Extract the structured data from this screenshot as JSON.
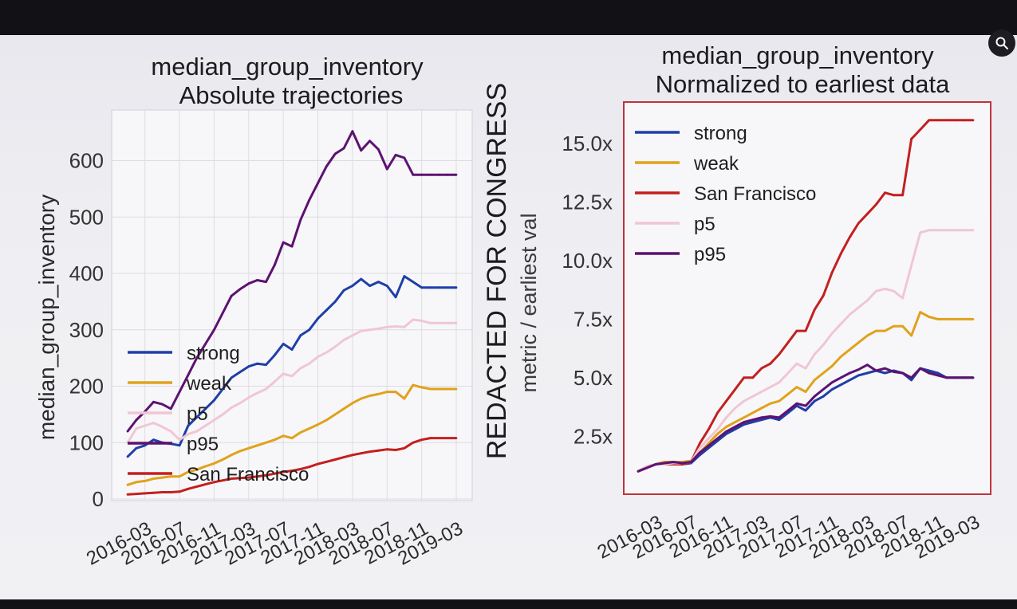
{
  "overlay": {
    "redaction": "REDACTED FOR CONGRESS"
  },
  "colors": {
    "strong": "#1f3fa8",
    "weak": "#e0a21c",
    "san_francisco": "#c41f1f",
    "p5": "#f0c6d4",
    "p95": "#5d1270"
  },
  "chart_data": [
    {
      "type": "line",
      "title": "median_group_inventory\nAbsolute trajectories",
      "title_lines": [
        "median_group_inventory",
        "Absolute trajectories"
      ],
      "xlabel": "",
      "ylabel": "median_group_inventory",
      "x": [
        "2016-01",
        "2016-02",
        "2016-03",
        "2016-04",
        "2016-05",
        "2016-06",
        "2016-07",
        "2016-08",
        "2016-09",
        "2016-10",
        "2016-11",
        "2016-12",
        "2017-01",
        "2017-02",
        "2017-03",
        "2017-04",
        "2017-05",
        "2017-06",
        "2017-07",
        "2017-08",
        "2017-09",
        "2017-10",
        "2017-11",
        "2017-12",
        "2018-01",
        "2018-02",
        "2018-03",
        "2018-04",
        "2018-05",
        "2018-06",
        "2018-07",
        "2018-08",
        "2018-09",
        "2018-10",
        "2018-11",
        "2018-12",
        "2019-01",
        "2019-02",
        "2019-03"
      ],
      "xticks": [
        "2016-03",
        "2016-07",
        "2016-11",
        "2017-03",
        "2017-07",
        "2017-11",
        "2018-03",
        "2018-07",
        "2018-11",
        "2019-03"
      ],
      "yticks": [
        0,
        100,
        200,
        300,
        400,
        500,
        600
      ],
      "ylim": [
        0,
        670
      ],
      "grid": true,
      "legend_position": "center-left",
      "legend": [
        "strong",
        "weak",
        "p5",
        "p95",
        "San Francisco"
      ],
      "series": [
        {
          "name": "strong",
          "color": "#1f3fa8",
          "values": [
            75,
            90,
            95,
            105,
            100,
            98,
            95,
            130,
            145,
            160,
            175,
            195,
            215,
            225,
            235,
            240,
            238,
            255,
            275,
            265,
            290,
            300,
            320,
            335,
            350,
            370,
            378,
            390,
            378,
            385,
            378,
            358,
            395,
            385,
            375,
            375,
            375,
            375,
            375
          ]
        },
        {
          "name": "weak",
          "color": "#e0a21c",
          "values": [
            25,
            30,
            32,
            36,
            38,
            40,
            40,
            48,
            52,
            58,
            63,
            70,
            78,
            85,
            90,
            95,
            100,
            105,
            112,
            108,
            118,
            125,
            132,
            140,
            150,
            160,
            170,
            178,
            183,
            186,
            190,
            190,
            178,
            202,
            198,
            195,
            195,
            195,
            195
          ]
        },
        {
          "name": "p5",
          "color": "#f0c6d4",
          "values": [
            100,
            125,
            130,
            135,
            128,
            120,
            105,
            115,
            120,
            130,
            140,
            150,
            162,
            170,
            180,
            188,
            195,
            208,
            222,
            218,
            232,
            240,
            252,
            260,
            270,
            282,
            290,
            298,
            300,
            302,
            305,
            306,
            305,
            318,
            316,
            312,
            312,
            312,
            312
          ]
        },
        {
          "name": "p95",
          "color": "#5d1270",
          "values": [
            120,
            140,
            155,
            172,
            168,
            160,
            190,
            220,
            250,
            275,
            300,
            330,
            360,
            372,
            382,
            388,
            385,
            415,
            455,
            448,
            495,
            530,
            560,
            590,
            612,
            622,
            652,
            618,
            635,
            620,
            585,
            610,
            605,
            575,
            575,
            575,
            575,
            575,
            575
          ]
        },
        {
          "name": "San Francisco",
          "color": "#c41f1f",
          "values": [
            8,
            9,
            10,
            11,
            12,
            12,
            13,
            18,
            22,
            26,
            30,
            33,
            36,
            37,
            38,
            40,
            42,
            45,
            48,
            50,
            53,
            57,
            62,
            66,
            70,
            74,
            78,
            81,
            84,
            86,
            88,
            87,
            90,
            100,
            105,
            108,
            108,
            108,
            108
          ]
        }
      ]
    },
    {
      "type": "line",
      "title": "median_group_inventory\nNormalized to earliest data",
      "title_lines": [
        "median_group_inventory",
        "Normalized to earliest data"
      ],
      "xlabel": "",
      "ylabel": "metric / earliest val",
      "x": [
        "2016-01",
        "2016-02",
        "2016-03",
        "2016-04",
        "2016-05",
        "2016-06",
        "2016-07",
        "2016-08",
        "2016-09",
        "2016-10",
        "2016-11",
        "2016-12",
        "2017-01",
        "2017-02",
        "2017-03",
        "2017-04",
        "2017-05",
        "2017-06",
        "2017-07",
        "2017-08",
        "2017-09",
        "2017-10",
        "2017-11",
        "2017-12",
        "2018-01",
        "2018-02",
        "2018-03",
        "2018-04",
        "2018-05",
        "2018-06",
        "2018-07",
        "2018-08",
        "2018-09",
        "2018-10",
        "2018-11",
        "2018-12",
        "2019-01",
        "2019-02",
        "2019-03"
      ],
      "xticks": [
        "2016-03",
        "2016-07",
        "2016-11",
        "2017-03",
        "2017-07",
        "2017-11",
        "2018-03",
        "2018-07",
        "2018-11",
        "2019-03"
      ],
      "yticks": [
        2.5,
        5.0,
        7.5,
        10.0,
        12.5,
        15.0
      ],
      "ytick_labels": [
        "2.5x",
        "5.0x",
        "7.5x",
        "10.0x",
        "12.5x",
        "15.0x"
      ],
      "ylim": [
        0.5,
        16.3
      ],
      "grid": false,
      "legend_position": "upper-left",
      "legend": [
        "strong",
        "weak",
        "San Francisco",
        "p5",
        "p95"
      ],
      "series": [
        {
          "name": "strong",
          "color": "#1f3fa8",
          "values": [
            1.0,
            1.2,
            1.3,
            1.4,
            1.4,
            1.3,
            1.35,
            1.7,
            2.0,
            2.3,
            2.6,
            2.8,
            3.0,
            3.1,
            3.2,
            3.3,
            3.2,
            3.5,
            3.8,
            3.6,
            4.0,
            4.2,
            4.5,
            4.7,
            4.9,
            5.1,
            5.2,
            5.3,
            5.2,
            5.3,
            5.2,
            4.9,
            5.4,
            5.3,
            5.2,
            5.0,
            5.0,
            5.0,
            5.0
          ]
        },
        {
          "name": "weak",
          "color": "#e0a21c",
          "values": [
            1.0,
            1.2,
            1.3,
            1.4,
            1.4,
            1.4,
            1.45,
            1.8,
            2.2,
            2.6,
            2.9,
            3.1,
            3.3,
            3.5,
            3.7,
            3.9,
            4.0,
            4.3,
            4.6,
            4.4,
            4.9,
            5.2,
            5.5,
            5.9,
            6.2,
            6.5,
            6.8,
            7.0,
            7.0,
            7.2,
            7.2,
            6.8,
            7.8,
            7.6,
            7.5,
            7.5,
            7.5,
            7.5,
            7.5
          ]
        },
        {
          "name": "San Francisco",
          "color": "#c41f1f",
          "values": [
            1.0,
            1.2,
            1.3,
            1.3,
            1.3,
            1.3,
            1.4,
            2.2,
            2.8,
            3.5,
            4.0,
            4.5,
            5.0,
            5.0,
            5.4,
            5.6,
            6.0,
            6.5,
            7.0,
            7.0,
            7.9,
            8.5,
            9.5,
            10.3,
            11.0,
            11.6,
            12.0,
            12.4,
            12.9,
            12.8,
            12.8,
            15.2,
            15.6,
            16.0,
            16.0,
            16.0,
            16.0,
            16.0,
            16.0
          ]
        },
        {
          "name": "p5",
          "color": "#f0c6d4",
          "values": [
            1.0,
            1.2,
            1.3,
            1.3,
            1.35,
            1.35,
            1.4,
            2.0,
            2.4,
            2.8,
            3.3,
            3.7,
            4.0,
            4.2,
            4.4,
            4.6,
            4.8,
            5.2,
            5.6,
            5.4,
            6.0,
            6.4,
            6.9,
            7.3,
            7.7,
            8.0,
            8.3,
            8.7,
            8.8,
            8.7,
            8.4,
            9.8,
            11.2,
            11.3,
            11.3,
            11.3,
            11.3,
            11.3,
            11.3
          ]
        },
        {
          "name": "p95",
          "color": "#5d1270",
          "values": [
            1.0,
            1.15,
            1.3,
            1.35,
            1.4,
            1.35,
            1.4,
            1.8,
            2.1,
            2.4,
            2.7,
            2.9,
            3.1,
            3.2,
            3.3,
            3.35,
            3.3,
            3.6,
            3.9,
            3.8,
            4.2,
            4.5,
            4.8,
            5.0,
            5.2,
            5.35,
            5.55,
            5.3,
            5.4,
            5.25,
            5.2,
            5.0,
            5.4,
            5.2,
            5.1,
            5.0,
            5.0,
            5.0,
            5.0
          ]
        }
      ]
    }
  ]
}
